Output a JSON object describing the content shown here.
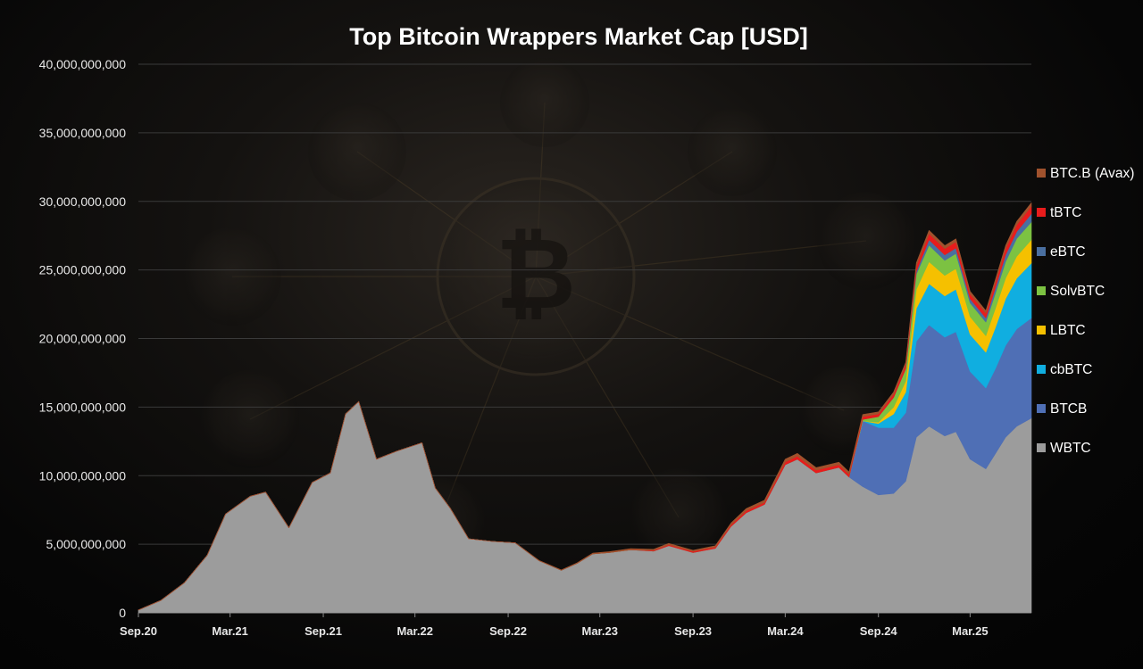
{
  "chart_data": {
    "type": "area",
    "stacked": true,
    "title": "Top Bitcoin Wrappers Market Cap [USD]",
    "xlabel": "",
    "ylabel": "",
    "ylim": [
      0,
      40000000000
    ],
    "yticks": [
      0,
      5000000000,
      10000000000,
      15000000000,
      20000000000,
      25000000000,
      30000000000,
      35000000000,
      40000000000
    ],
    "ytick_labels": [
      "0",
      "5,000,000,000",
      "10,000,000,000",
      "15,000,000,000",
      "20,000,000,000",
      "25,000,000,000",
      "30,000,000,000",
      "35,000,000,000",
      "40,000,000,000"
    ],
    "xticks": [
      "2020-09-01",
      "2021-03-01",
      "2021-09-01",
      "2022-03-01",
      "2022-09-01",
      "2023-03-01",
      "2023-09-01",
      "2024-03-01",
      "2024-09-01",
      "2025-03-01"
    ],
    "xtick_labels": [
      "Sep.20",
      "Mar.21",
      "Sep.21",
      "Mar.22",
      "Sep.22",
      "Mar.23",
      "Sep.23",
      "Mar.24",
      "Sep.24",
      "Mar.25"
    ],
    "xlim": [
      "2020-09-01",
      "2025-06-30"
    ],
    "grid": true,
    "legend_position": "right",
    "x": [
      "2020-09-01",
      "2020-10-15",
      "2020-12-01",
      "2021-01-15",
      "2021-02-20",
      "2021-04-10",
      "2021-05-10",
      "2021-06-25",
      "2021-08-10",
      "2021-09-15",
      "2021-10-15",
      "2021-11-10",
      "2021-12-15",
      "2022-01-25",
      "2022-03-15",
      "2022-04-10",
      "2022-05-10",
      "2022-06-15",
      "2022-08-01",
      "2022-09-15",
      "2022-11-01",
      "2022-12-15",
      "2023-01-15",
      "2023-02-15",
      "2023-03-20",
      "2023-05-01",
      "2023-06-15",
      "2023-07-15",
      "2023-09-01",
      "2023-10-15",
      "2023-11-15",
      "2023-12-15",
      "2024-01-20",
      "2024-03-01",
      "2024-03-25",
      "2024-05-01",
      "2024-06-15",
      "2024-07-05",
      "2024-08-01",
      "2024-09-01",
      "2024-10-01",
      "2024-10-25",
      "2024-11-15",
      "2024-12-10",
      "2025-01-10",
      "2025-02-01",
      "2025-03-01",
      "2025-04-01",
      "2025-04-20",
      "2025-05-10",
      "2025-06-01",
      "2025-06-30"
    ],
    "series": [
      {
        "name": "WBTC",
        "color": "#9c9c9c",
        "values": [
          200000000.0,
          900000000.0,
          2200000000.0,
          4200000000.0,
          7200000000.0,
          8500000000.0,
          8800000000.0,
          6200000000.0,
          9500000000.0,
          10200000000.0,
          14500000000.0,
          15400000000.0,
          11200000000.0,
          11800000000.0,
          12400000000.0,
          9100000000.0,
          7600000000.0,
          5400000000.0,
          5200000000.0,
          5100000000.0,
          3800000000.0,
          3100000000.0,
          3600000000.0,
          4300000000.0,
          4400000000.0,
          4600000000.0,
          4500000000.0,
          4900000000.0,
          4400000000.0,
          4700000000.0,
          6300000000.0,
          7300000000.0,
          7900000000.0,
          10800000000.0,
          11200000000.0,
          10200000000.0,
          10600000000.0,
          9900000000.0,
          9200000000.0,
          8600000000.0,
          8700000000.0,
          9600000000.0,
          12800000000.0,
          13600000000.0,
          12900000000.0,
          13200000000.0,
          11200000000.0,
          10500000000.0,
          11600000000.0,
          12800000000.0,
          13600000000.0,
          14200000000.0
        ]
      },
      {
        "name": "BTCB",
        "color": "#4f6fb5",
        "values": [
          0,
          0,
          0,
          0,
          0,
          0,
          0,
          0,
          0,
          0,
          0,
          0,
          0,
          0,
          0,
          0,
          0,
          0,
          0,
          0,
          0,
          0,
          0,
          0,
          0,
          0,
          0,
          0,
          0,
          0,
          0,
          0,
          0,
          0,
          0,
          0,
          0,
          0,
          4800000000.0,
          4900000000.0,
          4800000000.0,
          5000000000.0,
          7000000000.0,
          7400000000.0,
          7200000000.0,
          7300000000.0,
          6400000000.0,
          5900000000.0,
          6200000000.0,
          6700000000.0,
          7100000000.0,
          7300000000.0
        ]
      },
      {
        "name": "cbBTC",
        "color": "#10aee0",
        "values": [
          0,
          0,
          0,
          0,
          0,
          0,
          0,
          0,
          0,
          0,
          0,
          0,
          0,
          0,
          0,
          0,
          0,
          0,
          0,
          0,
          0,
          0,
          0,
          0,
          0,
          0,
          0,
          0,
          0,
          0,
          0,
          0,
          0,
          0,
          0,
          0,
          0,
          0,
          0,
          300000000.0,
          1000000000.0,
          1500000000.0,
          2400000000.0,
          3000000000.0,
          3000000000.0,
          3100000000.0,
          2700000000.0,
          2600000000.0,
          3000000000.0,
          3400000000.0,
          3700000000.0,
          4000000000.0
        ]
      },
      {
        "name": "LBTC",
        "color": "#f5c000",
        "values": [
          0,
          0,
          0,
          0,
          0,
          0,
          0,
          0,
          0,
          0,
          0,
          0,
          0,
          0,
          0,
          0,
          0,
          0,
          0,
          0,
          0,
          0,
          0,
          0,
          0,
          0,
          0,
          0,
          0,
          0,
          0,
          0,
          0,
          0,
          0,
          0,
          0,
          0,
          0,
          100000000.0,
          500000000.0,
          800000000.0,
          1400000000.0,
          1600000000.0,
          1500000000.0,
          1500000000.0,
          1300000000.0,
          1200000000.0,
          1400000000.0,
          1500000000.0,
          1600000000.0,
          1700000000.0
        ]
      },
      {
        "name": "SolvBTC",
        "color": "#7cc242",
        "values": [
          0,
          0,
          0,
          0,
          0,
          0,
          0,
          0,
          0,
          0,
          0,
          0,
          0,
          0,
          0,
          0,
          0,
          0,
          0,
          0,
          0,
          0,
          0,
          0,
          0,
          0,
          0,
          0,
          0,
          0,
          0,
          0,
          0,
          0,
          0,
          0,
          0,
          0,
          100000000.0,
          400000000.0,
          700000000.0,
          900000000.0,
          1100000000.0,
          1200000000.0,
          1100000000.0,
          1100000000.0,
          1000000000.0,
          1000000000.0,
          1100000000.0,
          1200000000.0,
          1300000000.0,
          1300000000.0
        ]
      },
      {
        "name": "eBTC",
        "color": "#4a6fa0",
        "values": [
          0,
          0,
          0,
          0,
          0,
          0,
          0,
          0,
          0,
          0,
          0,
          0,
          0,
          0,
          0,
          0,
          0,
          0,
          0,
          0,
          0,
          0,
          0,
          0,
          0,
          0,
          0,
          0,
          0,
          0,
          0,
          0,
          0,
          0,
          0,
          0,
          0,
          0,
          0,
          0,
          0,
          0,
          200000000.0,
          400000000.0,
          400000000.0,
          400000000.0,
          300000000.0,
          300000000.0,
          400000000.0,
          500000000.0,
          500000000.0,
          600000000.0
        ]
      },
      {
        "name": "tBTC",
        "color": "#e81c1c",
        "values": [
          0,
          0,
          0,
          0,
          0,
          0,
          0,
          0,
          0,
          0,
          0,
          0,
          0,
          0,
          0,
          0,
          0,
          0,
          0,
          0,
          0,
          0,
          0,
          0,
          0,
          0,
          50000000.0,
          70000000.0,
          80000000.0,
          100000000.0,
          120000000.0,
          150000000.0,
          150000000.0,
          200000000.0,
          220000000.0,
          200000000.0,
          200000000.0,
          200000000.0,
          200000000.0,
          200000000.0,
          250000000.0,
          300000000.0,
          400000000.0,
          450000000.0,
          450000000.0,
          450000000.0,
          350000000.0,
          350000000.0,
          400000000.0,
          450000000.0,
          500000000.0,
          550000000.0
        ]
      },
      {
        "name": "BTC.B (Avax)",
        "color": "#a0522d",
        "values": [
          0,
          0,
          0,
          0,
          0,
          0,
          0,
          0,
          0,
          0,
          0,
          0,
          0,
          0,
          0,
          0,
          0,
          0,
          0,
          0,
          20000000.0,
          30000000.0,
          40000000.0,
          50000000.0,
          60000000.0,
          80000000.0,
          80000000.0,
          90000000.0,
          80000000.0,
          90000000.0,
          120000000.0,
          150000000.0,
          160000000.0,
          200000000.0,
          200000000.0,
          180000000.0,
          180000000.0,
          170000000.0,
          160000000.0,
          150000000.0,
          150000000.0,
          170000000.0,
          220000000.0,
          240000000.0,
          220000000.0,
          220000000.0,
          190000000.0,
          180000000.0,
          200000000.0,
          220000000.0,
          240000000.0,
          250000000.0
        ]
      }
    ]
  }
}
